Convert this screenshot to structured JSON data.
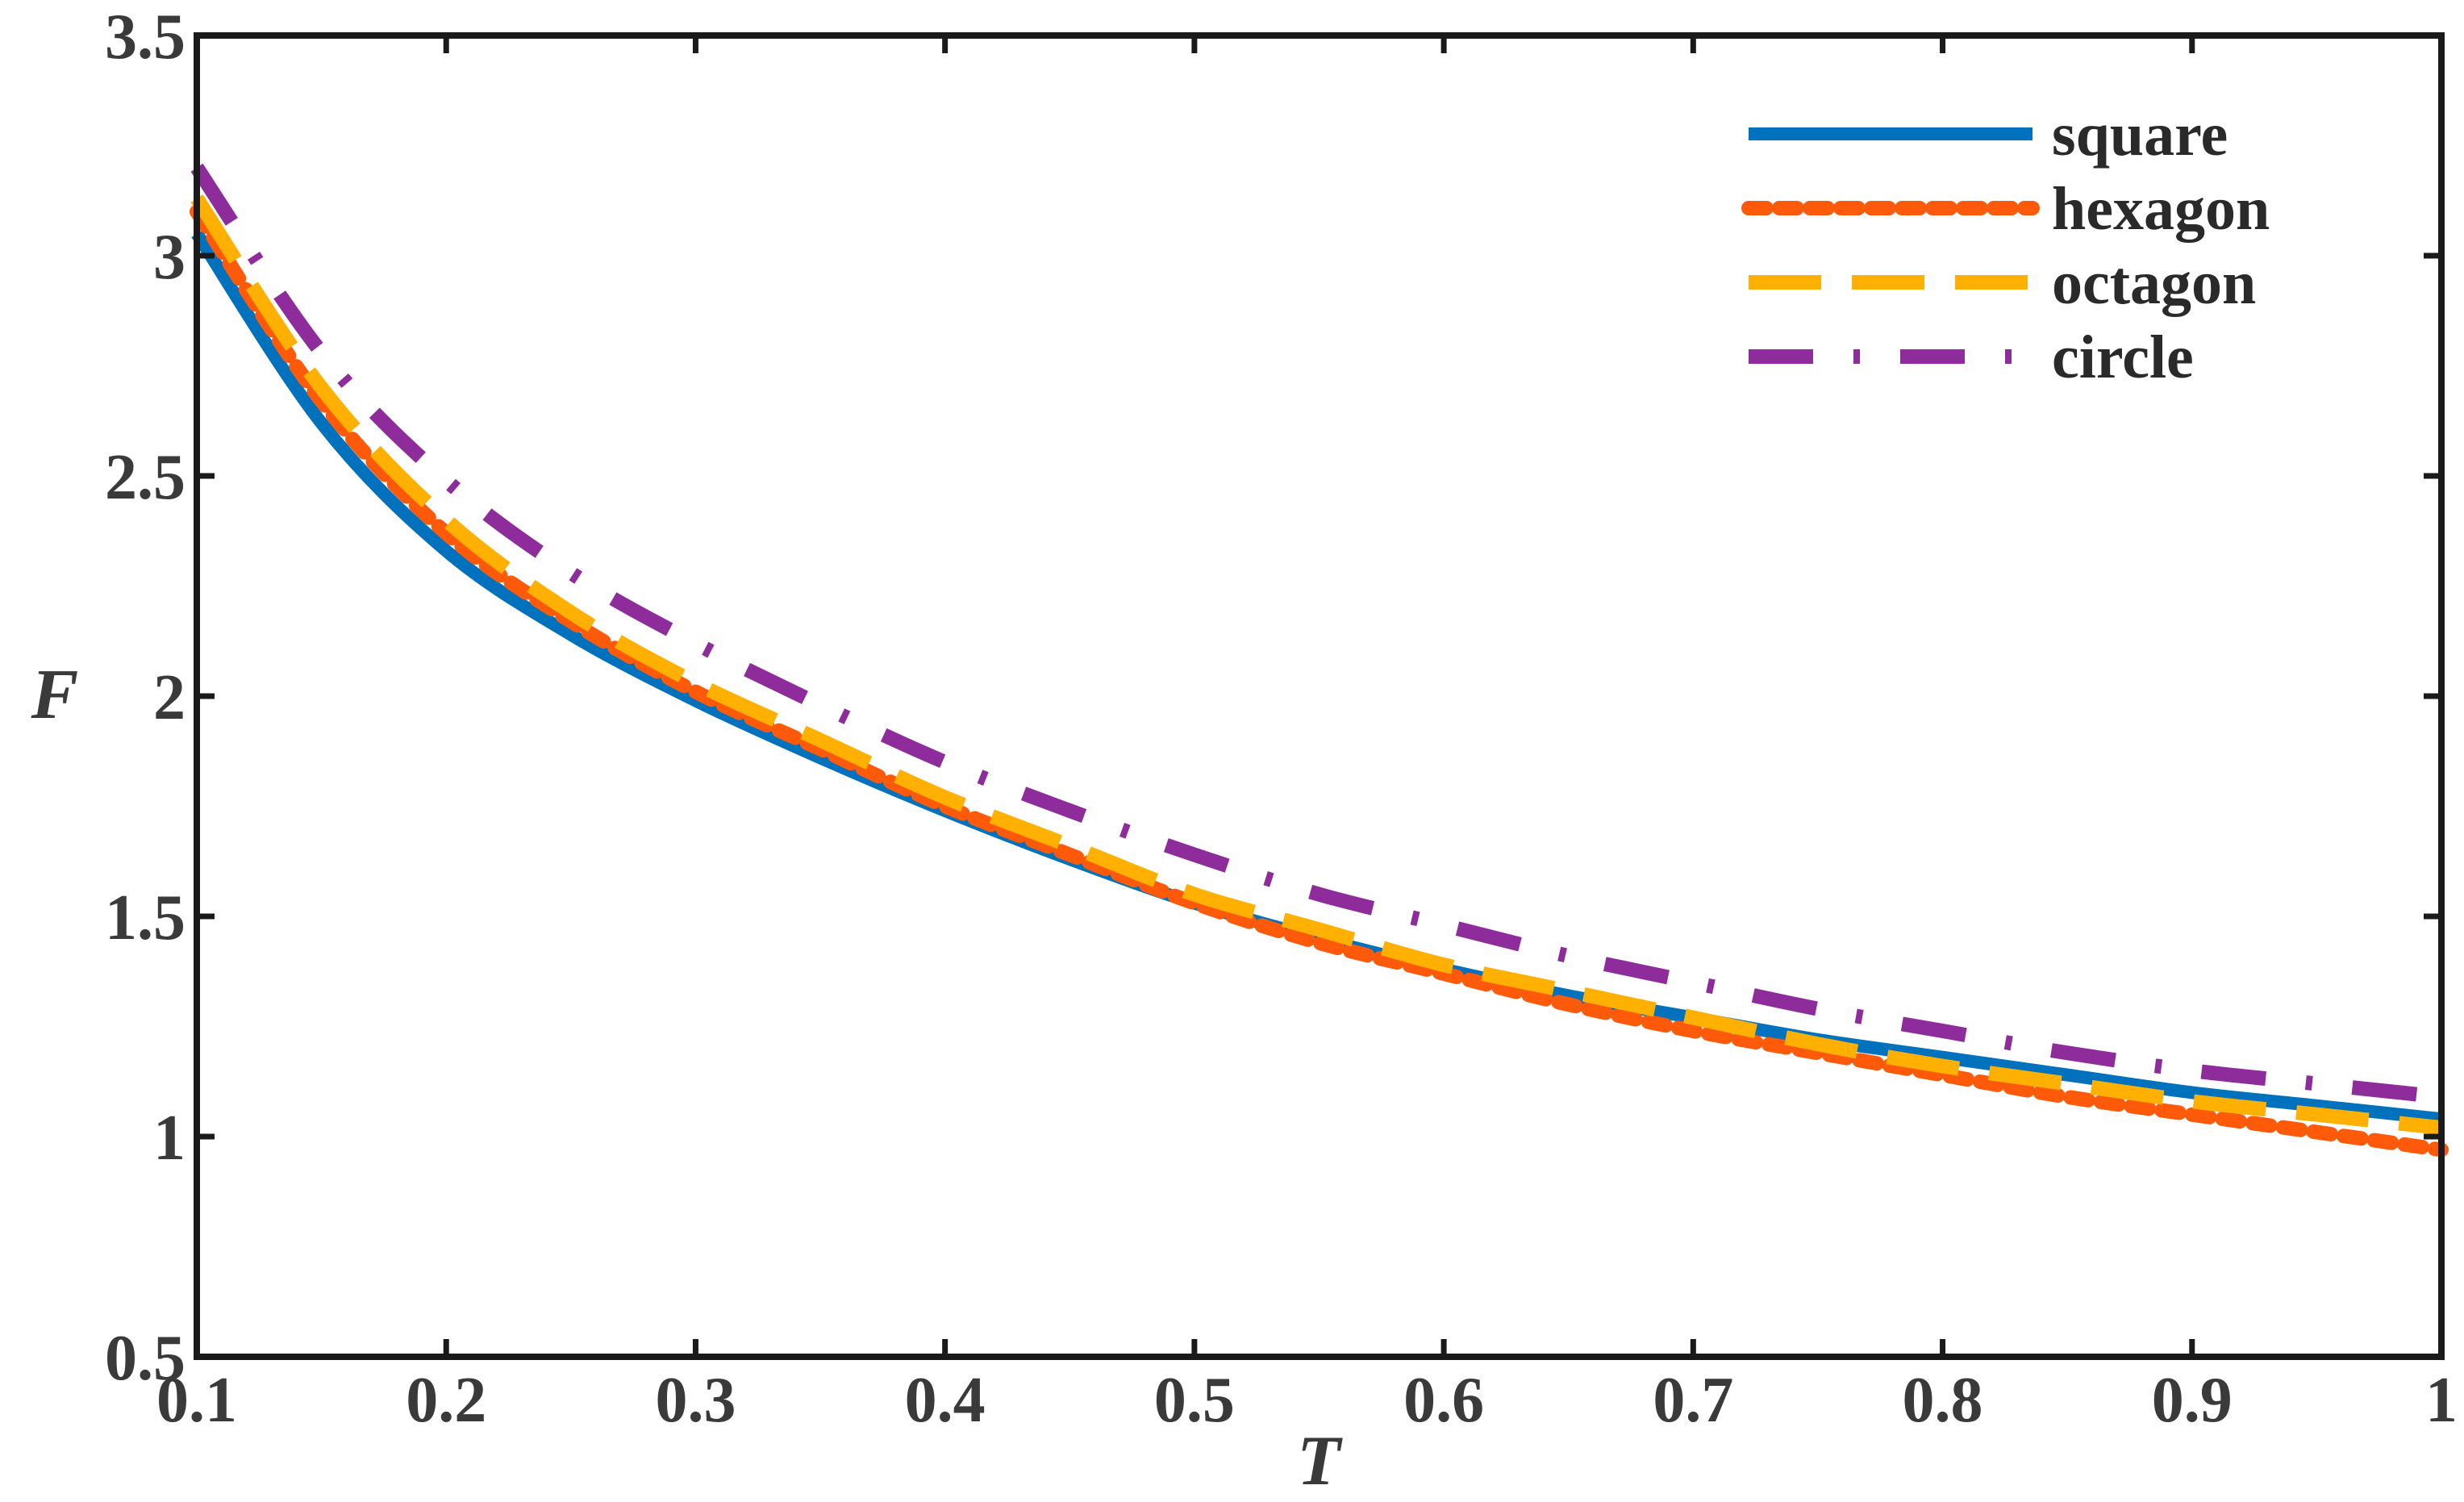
{
  "chart_data": {
    "type": "line",
    "title": "",
    "xlabel": "T",
    "ylabel": "F",
    "xlim": [
      0.1,
      1.0
    ],
    "ylim": [
      0.5,
      3.5
    ],
    "x_ticks": [
      "0.1",
      "0.2",
      "0.3",
      "0.4",
      "0.5",
      "0.6",
      "0.7",
      "0.8",
      "0.9",
      "1"
    ],
    "y_ticks": [
      "0.5",
      "1",
      "1.5",
      "2",
      "2.5",
      "3",
      "3.5"
    ],
    "grid": false,
    "legend_position": "top-right",
    "x": [
      0.1,
      0.15,
      0.2,
      0.25,
      0.3,
      0.35,
      0.4,
      0.45,
      0.5,
      0.55,
      0.6,
      0.65,
      0.7,
      0.75,
      0.8,
      0.85,
      0.9,
      0.95,
      1.0
    ],
    "series": [
      {
        "name": "square",
        "color": "#0072BD",
        "style": "solid",
        "values": [
          3.05,
          2.62,
          2.33,
          2.14,
          1.99,
          1.86,
          1.74,
          1.63,
          1.53,
          1.45,
          1.38,
          1.32,
          1.27,
          1.22,
          1.18,
          1.14,
          1.1,
          1.07,
          1.04
        ]
      },
      {
        "name": "hexagon",
        "color": "#FF5A0A",
        "style": "dotted",
        "values": [
          3.1,
          2.67,
          2.37,
          2.17,
          2.01,
          1.88,
          1.75,
          1.64,
          1.53,
          1.44,
          1.37,
          1.3,
          1.24,
          1.19,
          1.14,
          1.09,
          1.05,
          1.01,
          0.97
        ]
      },
      {
        "name": "octagon",
        "color": "#FFB000",
        "style": "dashed",
        "values": [
          3.13,
          2.7,
          2.4,
          2.19,
          2.03,
          1.9,
          1.77,
          1.66,
          1.55,
          1.47,
          1.39,
          1.33,
          1.27,
          1.21,
          1.16,
          1.12,
          1.08,
          1.05,
          1.02
        ]
      },
      {
        "name": "circle",
        "color": "#8E2C9B",
        "style": "dashdot",
        "values": [
          3.2,
          2.78,
          2.49,
          2.28,
          2.12,
          1.98,
          1.85,
          1.74,
          1.64,
          1.55,
          1.48,
          1.41,
          1.35,
          1.29,
          1.24,
          1.19,
          1.15,
          1.12,
          1.09
        ]
      }
    ]
  }
}
